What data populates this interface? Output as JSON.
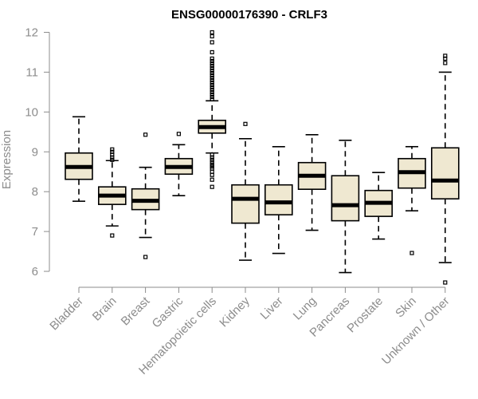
{
  "chart_data": {
    "type": "box",
    "title": "ENSG00000176390 - CRLF3",
    "xlabel": "",
    "ylabel": "Expression",
    "ylim": [
      5.6,
      12.15
    ],
    "yticks": [
      6,
      7,
      8,
      9,
      10,
      11,
      12
    ],
    "categories": [
      "Bladder",
      "Brain",
      "Breast",
      "Gastric",
      "Hematopoietic cells",
      "Kidney",
      "Liver",
      "Lung",
      "Pancreas",
      "Prostate",
      "Skin",
      "Unknown / Other"
    ],
    "boxes": [
      {
        "name": "Bladder",
        "whisker_low": 7.76,
        "q1": 8.31,
        "median": 8.62,
        "q3": 8.97,
        "whisker_high": 9.88,
        "outliers": []
      },
      {
        "name": "Brain",
        "whisker_low": 7.14,
        "q1": 7.68,
        "median": 7.9,
        "q3": 8.12,
        "whisker_high": 8.78,
        "outliers": [
          6.9,
          8.8,
          8.86,
          8.93,
          9.0,
          9.06
        ]
      },
      {
        "name": "Breast",
        "whisker_low": 6.85,
        "q1": 7.55,
        "median": 7.77,
        "q3": 8.07,
        "whisker_high": 8.61,
        "outliers": [
          6.36,
          9.43
        ]
      },
      {
        "name": "Gastric",
        "whisker_low": 7.9,
        "q1": 8.44,
        "median": 8.62,
        "q3": 8.83,
        "whisker_high": 9.18,
        "outliers": [
          9.45
        ]
      },
      {
        "name": "Hematopoietic cells",
        "whisker_low": 8.97,
        "q1": 9.47,
        "median": 9.62,
        "q3": 9.79,
        "whisker_high": 10.28,
        "outliers": [
          8.12,
          8.3,
          8.42,
          8.5,
          8.58,
          8.63,
          8.68,
          8.74,
          8.8,
          8.86,
          8.93,
          10.32,
          10.38,
          10.44,
          10.5,
          10.56,
          10.62,
          10.68,
          10.74,
          10.8,
          10.86,
          10.92,
          10.98,
          11.04,
          11.1,
          11.16,
          11.22,
          11.28,
          11.34,
          11.5,
          11.75,
          11.9,
          12.0
        ]
      },
      {
        "name": "Kidney",
        "whisker_low": 6.28,
        "q1": 7.21,
        "median": 7.82,
        "q3": 8.17,
        "whisker_high": 9.33,
        "outliers": [
          9.7
        ]
      },
      {
        "name": "Liver",
        "whisker_low": 6.45,
        "q1": 7.42,
        "median": 7.73,
        "q3": 8.17,
        "whisker_high": 9.13,
        "outliers": []
      },
      {
        "name": "Lung",
        "whisker_low": 7.03,
        "q1": 8.06,
        "median": 8.4,
        "q3": 8.73,
        "whisker_high": 9.43,
        "outliers": []
      },
      {
        "name": "Pancreas",
        "whisker_low": 5.97,
        "q1": 7.27,
        "median": 7.66,
        "q3": 8.4,
        "whisker_high": 9.29,
        "outliers": []
      },
      {
        "name": "Prostate",
        "whisker_low": 6.81,
        "q1": 7.38,
        "median": 7.72,
        "q3": 8.03,
        "whisker_high": 8.48,
        "outliers": []
      },
      {
        "name": "Skin",
        "whisker_low": 7.52,
        "q1": 8.09,
        "median": 8.49,
        "q3": 8.83,
        "whisker_high": 9.13,
        "outliers": [
          6.46
        ]
      },
      {
        "name": "Unknown / Other",
        "whisker_low": 6.22,
        "q1": 7.82,
        "median": 8.28,
        "q3": 9.1,
        "whisker_high": 11.0,
        "outliers": [
          5.72,
          11.23,
          11.34,
          11.41
        ]
      }
    ]
  }
}
